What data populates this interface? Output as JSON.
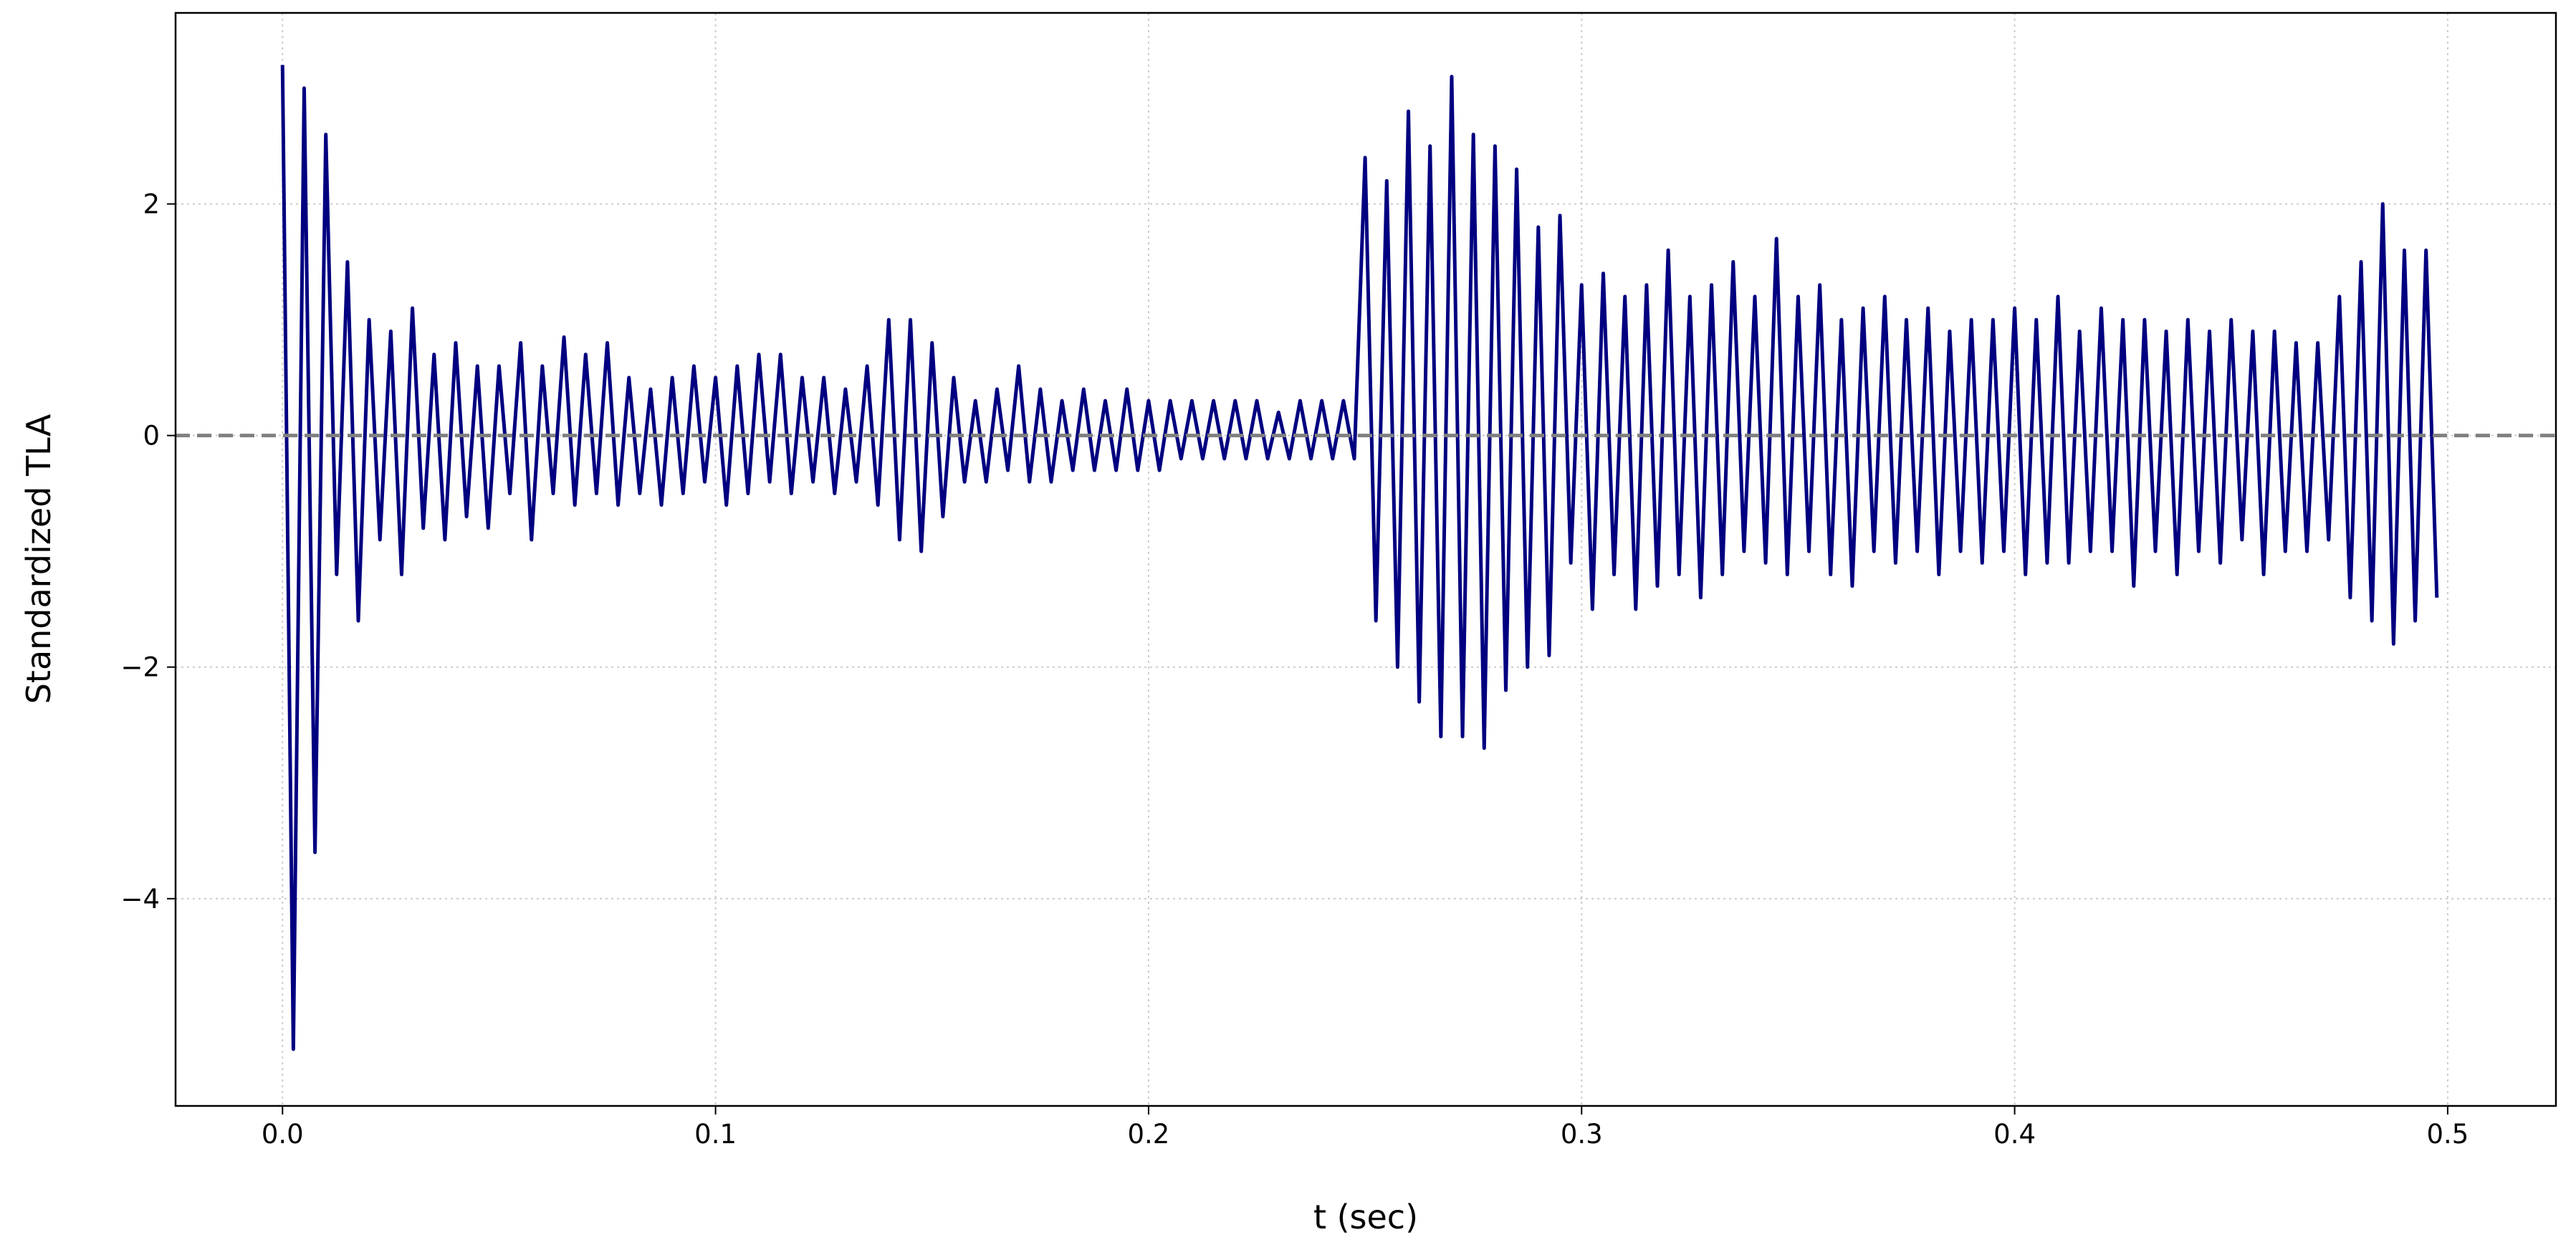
{
  "chart_data": {
    "type": "line",
    "xlabel": "t (sec)",
    "ylabel": "Standardized TLA",
    "color": "#000080",
    "grid": true,
    "hline": {
      "value": 0,
      "color": "#808080",
      "dashed": true
    },
    "xlim": [
      -0.0247,
      0.525
    ],
    "ylim": [
      -5.79,
      3.65
    ],
    "xticks": [
      {
        "value": 0,
        "label": "0.0"
      },
      0.1,
      0.2,
      0.3,
      0.4,
      0.5
    ],
    "yticks": [
      {
        "value": -4,
        "label": "−4"
      },
      {
        "value": -2,
        "label": "−2"
      },
      0,
      2
    ],
    "x": [
      0,
      0.0025,
      0.005,
      0.0075,
      0.01,
      0.0125,
      0.015,
      0.0175,
      0.02,
      0.0225,
      0.025,
      0.0275,
      0.03,
      0.0325,
      0.035,
      0.0375,
      0.04,
      0.0425,
      0.045,
      0.0475,
      0.05,
      0.0525,
      0.055,
      0.0575,
      0.06,
      0.0625,
      0.065,
      0.0675,
      0.07,
      0.0725,
      0.075,
      0.0775,
      0.08,
      0.0825,
      0.085,
      0.0875,
      0.09,
      0.0925,
      0.095,
      0.0975,
      0.1,
      0.1025,
      0.105,
      0.1075,
      0.11,
      0.1125,
      0.115,
      0.1175,
      0.12,
      0.1225,
      0.125,
      0.1275,
      0.13,
      0.1325,
      0.135,
      0.1375,
      0.14,
      0.1425,
      0.145,
      0.1475,
      0.15,
      0.1525,
      0.155,
      0.1575,
      0.16,
      0.1625,
      0.165,
      0.1675,
      0.17,
      0.1725,
      0.175,
      0.1775,
      0.18,
      0.1825,
      0.185,
      0.1875,
      0.19,
      0.1925,
      0.195,
      0.1975,
      0.2,
      0.2025,
      0.205,
      0.2075,
      0.21,
      0.2125,
      0.215,
      0.2175,
      0.22,
      0.2225,
      0.225,
      0.2275,
      0.23,
      0.2325,
      0.235,
      0.2375,
      0.24,
      0.2425,
      0.245,
      0.2475,
      0.25,
      0.2525,
      0.255,
      0.2575,
      0.26,
      0.2625,
      0.265,
      0.2675,
      0.27,
      0.2725,
      0.275,
      0.2775,
      0.28,
      0.2825,
      0.285,
      0.2875,
      0.29,
      0.2925,
      0.295,
      0.2975,
      0.3,
      0.3025,
      0.305,
      0.3075,
      0.31,
      0.3125,
      0.315,
      0.3175,
      0.32,
      0.3225,
      0.325,
      0.3275,
      0.33,
      0.3325,
      0.335,
      0.3375,
      0.34,
      0.3425,
      0.345,
      0.3475,
      0.35,
      0.3525,
      0.355,
      0.3575,
      0.36,
      0.3625,
      0.365,
      0.3675,
      0.37,
      0.3725,
      0.375,
      0.3775,
      0.38,
      0.3825,
      0.385,
      0.3875,
      0.39,
      0.3925,
      0.395,
      0.3975,
      0.4,
      0.4025,
      0.405,
      0.4075,
      0.41,
      0.4125,
      0.415,
      0.4175,
      0.42,
      0.4225,
      0.425,
      0.4275,
      0.43,
      0.4325,
      0.435,
      0.4375,
      0.44,
      0.4425,
      0.445,
      0.4475,
      0.45,
      0.4525,
      0.455,
      0.4575,
      0.46,
      0.4625,
      0.465,
      0.4675,
      0.47,
      0.4725,
      0.475,
      0.4775,
      0.48,
      0.4825,
      0.485,
      0.4875,
      0.49,
      0.4925,
      0.495,
      0.4975
    ],
    "values": [
      3.2,
      -5.3,
      3.0,
      -3.6,
      2.6,
      -1.2,
      1.5,
      -1.6,
      1.0,
      -0.9,
      0.9,
      -1.2,
      1.1,
      -0.8,
      0.7,
      -0.9,
      0.8,
      -0.7,
      0.6,
      -0.8,
      0.6,
      -0.5,
      0.8,
      -0.9,
      0.6,
      -0.5,
      0.85,
      -0.6,
      0.7,
      -0.5,
      0.8,
      -0.6,
      0.5,
      -0.5,
      0.4,
      -0.6,
      0.5,
      -0.5,
      0.6,
      -0.4,
      0.5,
      -0.6,
      0.6,
      -0.5,
      0.7,
      -0.4,
      0.7,
      -0.5,
      0.5,
      -0.4,
      0.5,
      -0.5,
      0.4,
      -0.4,
      0.6,
      -0.6,
      1.0,
      -0.9,
      1.0,
      -1.0,
      0.8,
      -0.7,
      0.5,
      -0.4,
      0.3,
      -0.4,
      0.4,
      -0.3,
      0.6,
      -0.4,
      0.4,
      -0.4,
      0.3,
      -0.3,
      0.4,
      -0.3,
      0.3,
      -0.3,
      0.4,
      -0.3,
      0.3,
      -0.3,
      0.3,
      -0.2,
      0.3,
      -0.2,
      0.3,
      -0.2,
      0.3,
      -0.2,
      0.3,
      -0.2,
      0.2,
      -0.2,
      0.3,
      -0.2,
      0.3,
      -0.2,
      0.3,
      -0.2,
      2.4,
      -1.6,
      2.2,
      -2.0,
      2.8,
      -2.3,
      2.5,
      -2.6,
      3.1,
      -2.6,
      2.6,
      -2.7,
      2.5,
      -2.2,
      2.3,
      -2.0,
      1.8,
      -1.9,
      1.9,
      -1.1,
      1.3,
      -1.5,
      1.4,
      -1.2,
      1.2,
      -1.5,
      1.3,
      -1.3,
      1.6,
      -1.2,
      1.2,
      -1.4,
      1.3,
      -1.2,
      1.5,
      -1.0,
      1.2,
      -1.1,
      1.7,
      -1.2,
      1.2,
      -1.0,
      1.3,
      -1.2,
      1.0,
      -1.3,
      1.1,
      -1.0,
      1.2,
      -1.1,
      1.0,
      -1.0,
      1.1,
      -1.2,
      0.9,
      -1.0,
      1.0,
      -1.1,
      1.0,
      -1.0,
      1.1,
      -1.2,
      1.0,
      -1.1,
      1.2,
      -1.1,
      0.9,
      -1.0,
      1.1,
      -1.0,
      1.0,
      -1.3,
      1.0,
      -1.0,
      0.9,
      -1.2,
      1.0,
      -1.0,
      0.9,
      -1.1,
      1.0,
      -0.9,
      0.9,
      -1.2,
      0.9,
      -1.0,
      0.8,
      -1.0,
      0.8,
      -0.9,
      1.2,
      -1.4,
      1.5,
      -1.6,
      2.0,
      -1.8,
      1.6,
      -1.6,
      1.6,
      -1.4
    ]
  }
}
